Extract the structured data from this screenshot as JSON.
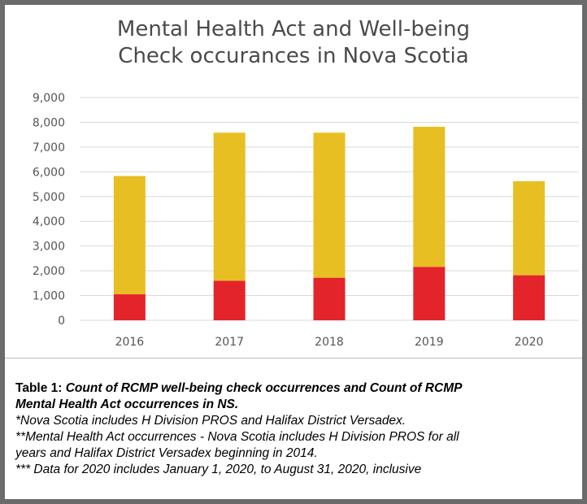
{
  "chart_data": {
    "type": "bar",
    "stacked": true,
    "title_lines": [
      "Mental Health Act and Well-being",
      "Check occurances in Nova Scotia"
    ],
    "categories": [
      "2016",
      "2017",
      "2018",
      "2019",
      "2020"
    ],
    "series": [
      {
        "values": [
          1050,
          1600,
          1720,
          2160,
          1820
        ],
        "color": "#e3242b"
      },
      {
        "values": [
          4780,
          5980,
          5860,
          5660,
          3800
        ],
        "color": "#e8bf22"
      }
    ],
    "ylim": [
      0,
      9000
    ],
    "yticks": [
      "9,000",
      "8,000",
      "7,000",
      "6,000",
      "5,000",
      "4,000",
      "3,000",
      "2,000",
      "1,000",
      "0"
    ],
    "grid": true,
    "legend": "none"
  },
  "caption": {
    "label": "Table 1: ",
    "title_part1": "Count of RCMP well-being check occurrences and Count of RCMP",
    "title_part2": "Mental Health Act occurrences in NS.",
    "note1": "*Nova Scotia includes H Division PROS and Halifax District Versadex.",
    "note2a": "**Mental Health Act occurrences - Nova Scotia includes H Division PROS for all",
    "note2b": "years and Halifax District Versadex beginning in 2014.",
    "note3": "*** Data for 2020 includes January 1, 2020, to August 31, 2020, inclusive"
  }
}
